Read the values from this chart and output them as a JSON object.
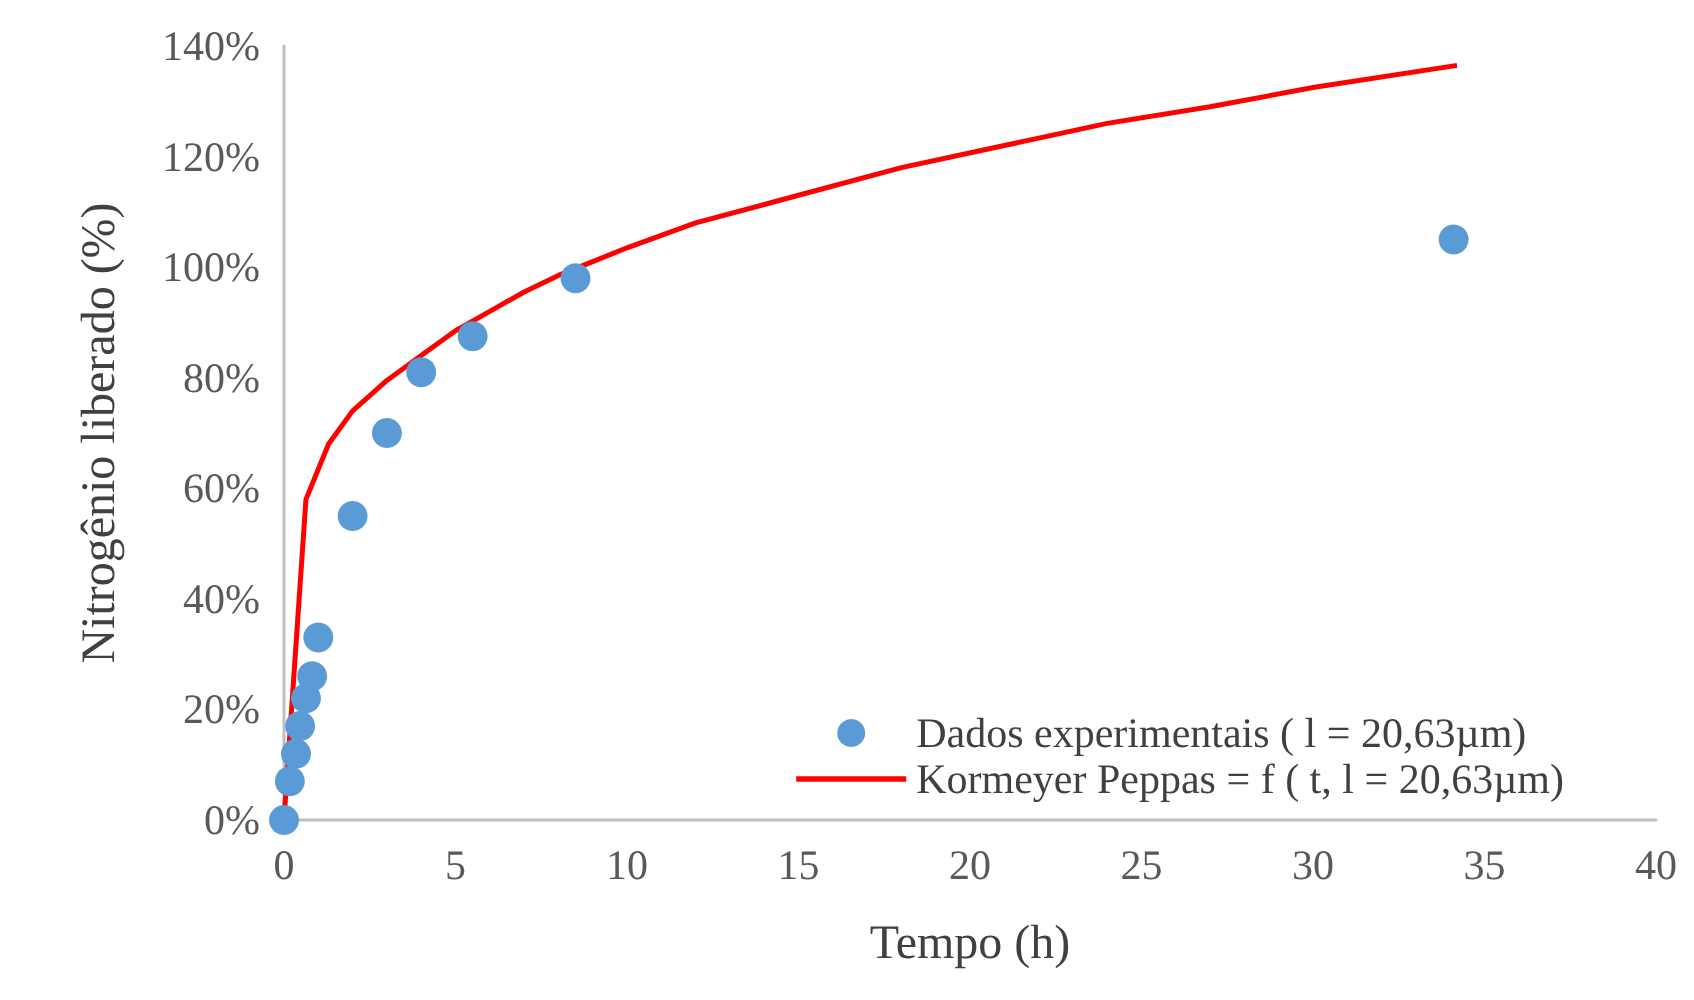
{
  "chart_data": {
    "type": "scatter",
    "xlabel": "Tempo (h)",
    "ylabel": "Nitrogênio liberado (%)",
    "xlim": [
      0,
      40
    ],
    "xticks": [
      0,
      5,
      10,
      15,
      20,
      25,
      30,
      35,
      40
    ],
    "ylim": [
      0,
      140
    ],
    "yticks": [
      {
        "value": 0,
        "label": "0%"
      },
      {
        "value": 20,
        "label": "20%"
      },
      {
        "value": 40,
        "label": "40%"
      },
      {
        "value": 60,
        "label": "60%"
      },
      {
        "value": 80,
        "label": "80%"
      },
      {
        "value": 100,
        "label": "100%"
      },
      {
        "value": 120,
        "label": "120%"
      },
      {
        "value": 140,
        "label": "140%"
      }
    ],
    "grid": false,
    "legend": "bottom right",
    "series": [
      {
        "name": "Dados experimentais ( l = 20,63µm)",
        "marker": "circle",
        "color": "#5b9bd5",
        "x": [
          0,
          0.17,
          0.35,
          0.47,
          0.64,
          0.82,
          1,
          2,
          3,
          4,
          5.5,
          8.5,
          34.1
        ],
        "values": [
          0,
          7,
          12,
          17,
          22,
          26,
          33,
          55,
          70,
          81,
          87.5,
          98,
          105
        ]
      },
      {
        "name": "Kormeyer Peppas = f ( t, l = 20,63µm)",
        "type": "line",
        "marker": "none",
        "line_style": "solid",
        "color": "#ff0000",
        "x": [
          0,
          0.64,
          1.3,
          2,
          3,
          4,
          5,
          6,
          7,
          8,
          9,
          10,
          12,
          15,
          18,
          21,
          24,
          27,
          30,
          34.2
        ],
        "values": [
          0,
          58,
          68,
          74,
          79.5,
          84,
          88.5,
          92,
          95.5,
          98.5,
          101,
          103.5,
          108,
          113,
          118,
          122,
          126,
          129,
          132.5,
          136.5
        ]
      }
    ]
  }
}
